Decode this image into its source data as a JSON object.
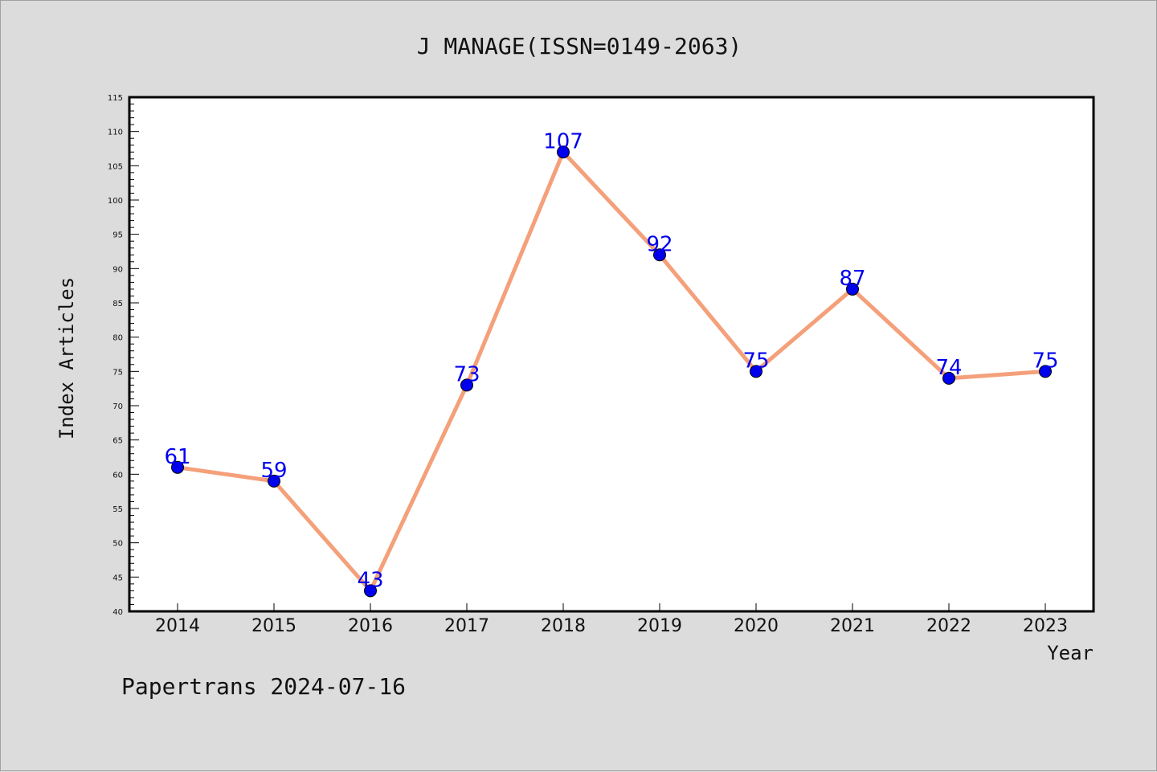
{
  "chart_data": {
    "type": "line",
    "title": "J MANAGE(ISSN=0149-2063)",
    "xlabel": "Year",
    "ylabel": "Index Articles",
    "categories": [
      "2014",
      "2015",
      "2016",
      "2017",
      "2018",
      "2019",
      "2020",
      "2021",
      "2022",
      "2023"
    ],
    "series": [
      {
        "values": [
          61,
          59,
          43,
          73,
          107,
          92,
          75,
          87,
          74,
          75
        ]
      }
    ],
    "ylim": [
      40,
      115
    ],
    "ytick_step": 5,
    "yminor_step": 1,
    "grid": false,
    "line_color": "#f4a07a",
    "marker_color": "#0000ee",
    "label_color": "#0000ee",
    "plot_background": "#ffffff",
    "page_background": "#dcdcdc"
  },
  "footer": {
    "text": "Papertrans 2024-07-16"
  }
}
